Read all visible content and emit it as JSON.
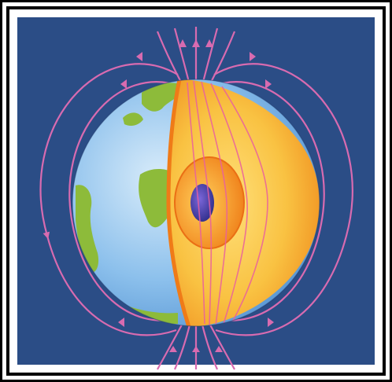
{
  "image": {
    "subject": "earth-magnetic-field-cutaway",
    "frame_style": "double-black-border",
    "colors": {
      "background": "#2b4d86",
      "field_lines": "#d86bb0",
      "ocean": "#7fb6e6",
      "land": "#8dbb3a",
      "mantle": "#f5b22a",
      "crust_edge": "#ef7b18",
      "outer_core": "#f08a1e",
      "inner_core": "#3a3aa0"
    }
  }
}
